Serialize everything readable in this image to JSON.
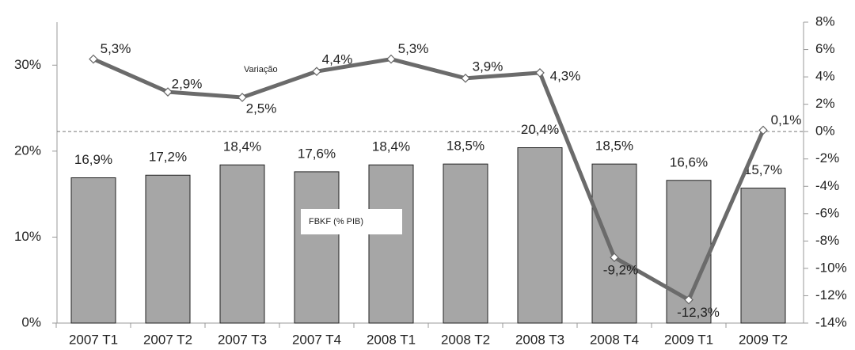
{
  "chart_data": {
    "type": "bar-line",
    "categories": [
      "2007 T1",
      "2007 T2",
      "2007 T3",
      "2007 T4",
      "2008 T1",
      "2008 T2",
      "2008 T3",
      "2008 T4",
      "2009 T1",
      "2009 T2"
    ],
    "series": [
      {
        "name": "FBKF (% PIB)",
        "type": "bar",
        "color": "#a6a6a6",
        "axis": "y",
        "values": [
          16.9,
          17.2,
          18.4,
          17.6,
          18.4,
          18.5,
          20.4,
          18.5,
          16.6,
          15.7
        ],
        "value_labels": [
          "16,9%",
          "17,2%",
          "18,4%",
          "17,6%",
          "18,4%",
          "18,5%",
          "20,4%",
          "18,5%",
          "16,6%",
          "15,7%"
        ]
      },
      {
        "name": "Variação",
        "type": "line",
        "color": "#6b6b6b",
        "axis": "y2",
        "values": [
          5.3,
          2.9,
          2.5,
          4.4,
          5.3,
          3.9,
          4.3,
          -9.2,
          -12.3,
          0.1
        ],
        "value_labels": [
          "5,3%",
          "2,9%",
          "2,5%",
          "4,4%",
          "5,3%",
          "3,9%",
          "4,3%",
          "-9,2%",
          "-12,3%",
          "0,1%"
        ]
      }
    ],
    "ylim": [
      0,
      35
    ],
    "yticks": [
      {
        "value": 0,
        "label": "0%"
      },
      {
        "value": 10,
        "label": "10%"
      },
      {
        "value": 20,
        "label": "20%"
      },
      {
        "value": 30,
        "label": "30%"
      }
    ],
    "y2lim": [
      -14,
      8
    ],
    "y2ticks": [
      {
        "value": -14,
        "label": "-14%"
      },
      {
        "value": -12,
        "label": "-12%"
      },
      {
        "value": -10,
        "label": "-10%"
      },
      {
        "value": -8,
        "label": "-8%"
      },
      {
        "value": -6,
        "label": "-6%"
      },
      {
        "value": -4,
        "label": "-4%"
      },
      {
        "value": -2,
        "label": "-2%"
      },
      {
        "value": 0,
        "label": "0%"
      },
      {
        "value": 2,
        "label": "2%"
      },
      {
        "value": 4,
        "label": "4%"
      },
      {
        "value": 6,
        "label": "6%"
      },
      {
        "value": 8,
        "label": "8%"
      }
    ]
  }
}
